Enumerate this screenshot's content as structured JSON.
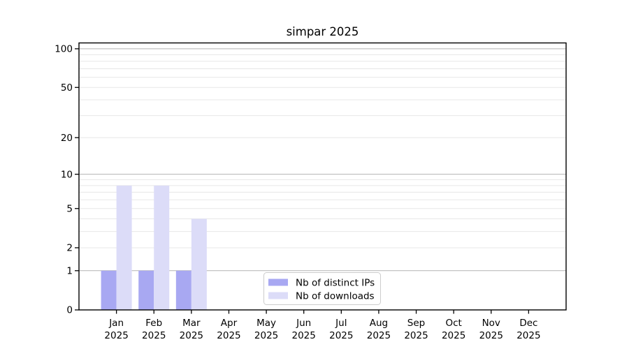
{
  "chart_data": {
    "type": "bar",
    "title": "simpar 2025",
    "categories": [
      "Jan",
      "Feb",
      "Mar",
      "Apr",
      "May",
      "Jun",
      "Jul",
      "Aug",
      "Sep",
      "Oct",
      "Nov",
      "Dec"
    ],
    "x_sublabel_year": "2025",
    "series": [
      {
        "name": "Nb of distinct IPs",
        "color": "#a8a8f2",
        "values": [
          1,
          1,
          1,
          0,
          0,
          0,
          0,
          0,
          0,
          0,
          0,
          0
        ]
      },
      {
        "name": "Nb of downloads",
        "color": "#dcdcf8",
        "values": [
          8,
          8,
          4,
          0,
          0,
          0,
          0,
          0,
          0,
          0,
          0,
          0
        ]
      }
    ],
    "xlabel": "",
    "ylabel": "",
    "y_scale": "log1p",
    "ylim": [
      0,
      111
    ],
    "y_ticks": [
      0,
      1,
      2,
      5,
      10,
      20,
      50,
      100
    ],
    "y_major_gridlines": [
      1,
      10,
      100
    ],
    "y_minor_gridlines": [
      2,
      3,
      4,
      5,
      6,
      7,
      8,
      9,
      20,
      30,
      40,
      50,
      60,
      70,
      80,
      90
    ],
    "grid": true,
    "legend": {
      "position": "lower center",
      "entries": [
        "Nb of distinct IPs",
        "Nb of downloads"
      ]
    }
  },
  "colors": {
    "background": "#ffffff",
    "axis": "#000000",
    "major_grid": "#b3b3b3",
    "minor_grid": "#e7e7e7",
    "legend_border": "#cccccc",
    "legend_background": "#ffffff",
    "text": "#000000"
  }
}
